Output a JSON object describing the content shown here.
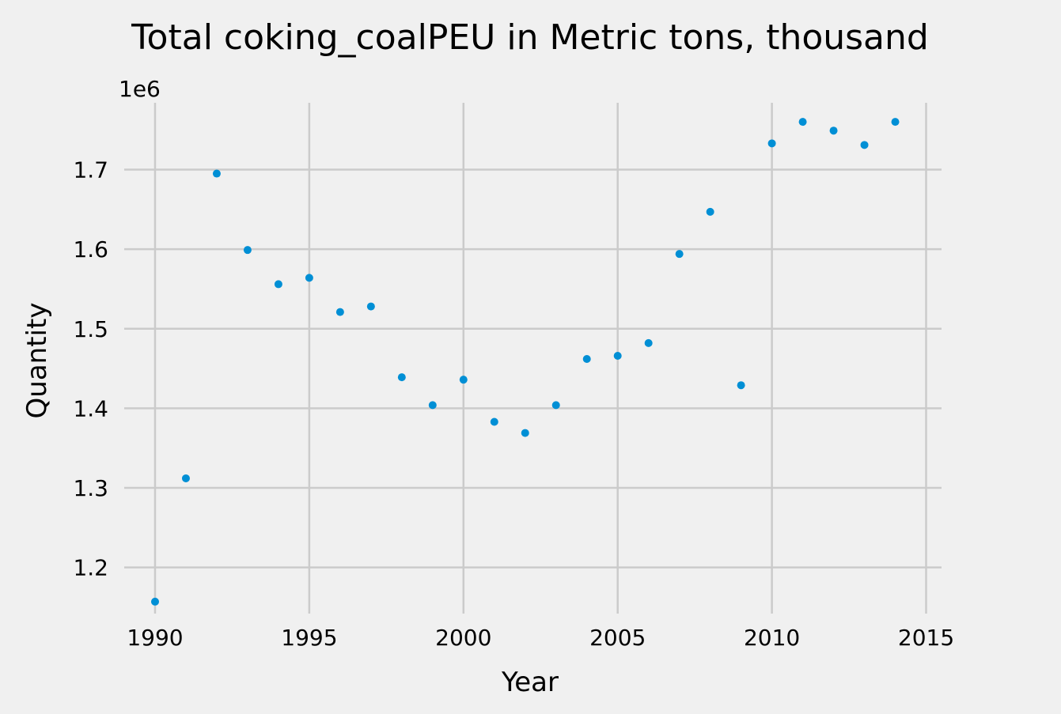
{
  "chart_data": {
    "type": "scatter",
    "title": "Total coking_coalPEU in Metric tons,  thousand",
    "xlabel": "Year",
    "ylabel": "Quantity",
    "offset_label": "1e6",
    "xlim": [
      1989.0,
      2015.5
    ],
    "ylim": [
      1.142,
      1.784
    ],
    "x_ticks": [
      1990,
      1995,
      2000,
      2005,
      2010,
      2015
    ],
    "x_tick_labels": [
      "1990",
      "1995",
      "2000",
      "2005",
      "2010",
      "2015"
    ],
    "y_ticks": [
      1.2,
      1.3,
      1.4,
      1.5,
      1.6,
      1.7
    ],
    "y_tick_labels": [
      "1.2",
      "1.3",
      "1.4",
      "1.5",
      "1.6",
      "1.7"
    ],
    "grid": true,
    "color": "#008fd5",
    "x": [
      1990,
      1991,
      1992,
      1993,
      1994,
      1995,
      1996,
      1997,
      1998,
      1999,
      2000,
      2001,
      2002,
      2003,
      2004,
      2005,
      2006,
      2007,
      2008,
      2009,
      2010,
      2011,
      2012,
      2013,
      2014
    ],
    "y": [
      1.157,
      1.312,
      1.695,
      1.599,
      1.556,
      1.564,
      1.521,
      1.528,
      1.439,
      1.404,
      1.436,
      1.383,
      1.369,
      1.404,
      1.462,
      1.466,
      1.482,
      1.594,
      1.647,
      1.429,
      1.733,
      1.76,
      1.749,
      1.731,
      1.76
    ]
  }
}
